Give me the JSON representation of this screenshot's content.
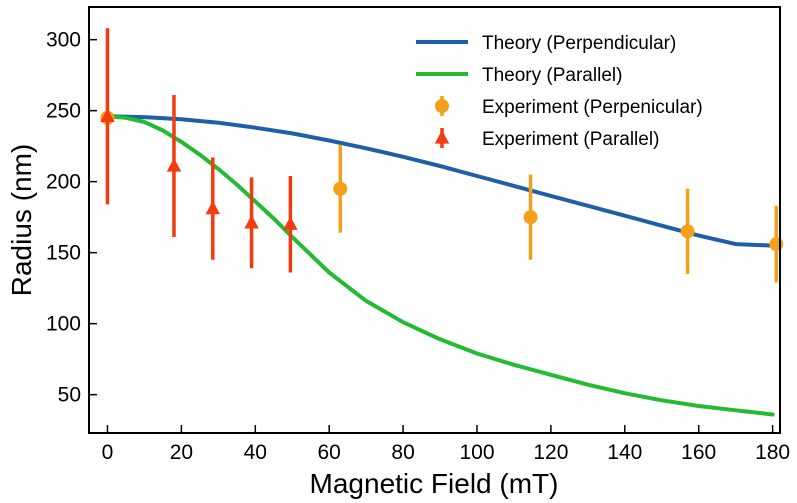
{
  "chart_data": {
    "type": "line",
    "title": "",
    "xlabel": "Magnetic Field (mT)",
    "ylabel": "Radius (nm)",
    "xlim": [
      -5,
      182
    ],
    "ylim": [
      23,
      323
    ],
    "xticks": [
      0,
      20,
      40,
      60,
      80,
      100,
      120,
      140,
      160,
      180
    ],
    "yticks": [
      50,
      100,
      150,
      200,
      250,
      300
    ],
    "grid": false,
    "legend_position": "top-right",
    "series": [
      {
        "name": "Theory (Perpendicular)",
        "kind": "line",
        "color": "#1f5fa8",
        "x": [
          0,
          10,
          20,
          30,
          40,
          50,
          60,
          70,
          80,
          90,
          100,
          110,
          120,
          130,
          140,
          150,
          160,
          170,
          180
        ],
        "y": [
          246,
          245.5,
          244,
          241.5,
          238,
          234,
          229,
          223.5,
          217.5,
          211,
          204,
          197,
          190,
          183,
          176,
          169,
          162,
          156,
          155
        ]
      },
      {
        "name": "Theory (Parallel)",
        "kind": "line",
        "color": "#22bb33",
        "x": [
          0,
          5,
          10,
          15,
          20,
          25,
          30,
          35,
          40,
          45,
          50,
          60,
          70,
          80,
          90,
          100,
          110,
          120,
          130,
          140,
          150,
          160,
          170,
          180
        ],
        "y": [
          246,
          245,
          242,
          236,
          228,
          219,
          209,
          198,
          186,
          174,
          161,
          136,
          116,
          101,
          89,
          79,
          71,
          64,
          57,
          51,
          46,
          42,
          39,
          36
        ]
      },
      {
        "name": "Experiment (Perpenicular)",
        "kind": "errorbar",
        "marker": "circle",
        "color": "#f5a01a",
        "points": [
          {
            "x": 0,
            "y": 245,
            "err": 4
          },
          {
            "x": 63,
            "y": 195,
            "err": 31
          },
          {
            "x": 114.5,
            "y": 175,
            "err": 30
          },
          {
            "x": 157,
            "y": 165,
            "err": 30
          },
          {
            "x": 181,
            "y": 156,
            "err": 27
          }
        ]
      },
      {
        "name": "Experiment (Parallel)",
        "kind": "errorbar",
        "marker": "triangle",
        "color": "#f23c0f",
        "points": [
          {
            "x": 0,
            "y": 246,
            "err": 62
          },
          {
            "x": 18,
            "y": 211,
            "err": 50
          },
          {
            "x": 28.5,
            "y": 181,
            "err": 36
          },
          {
            "x": 39,
            "y": 171,
            "err": 32
          },
          {
            "x": 49.5,
            "y": 170,
            "err": 34
          }
        ]
      }
    ]
  }
}
